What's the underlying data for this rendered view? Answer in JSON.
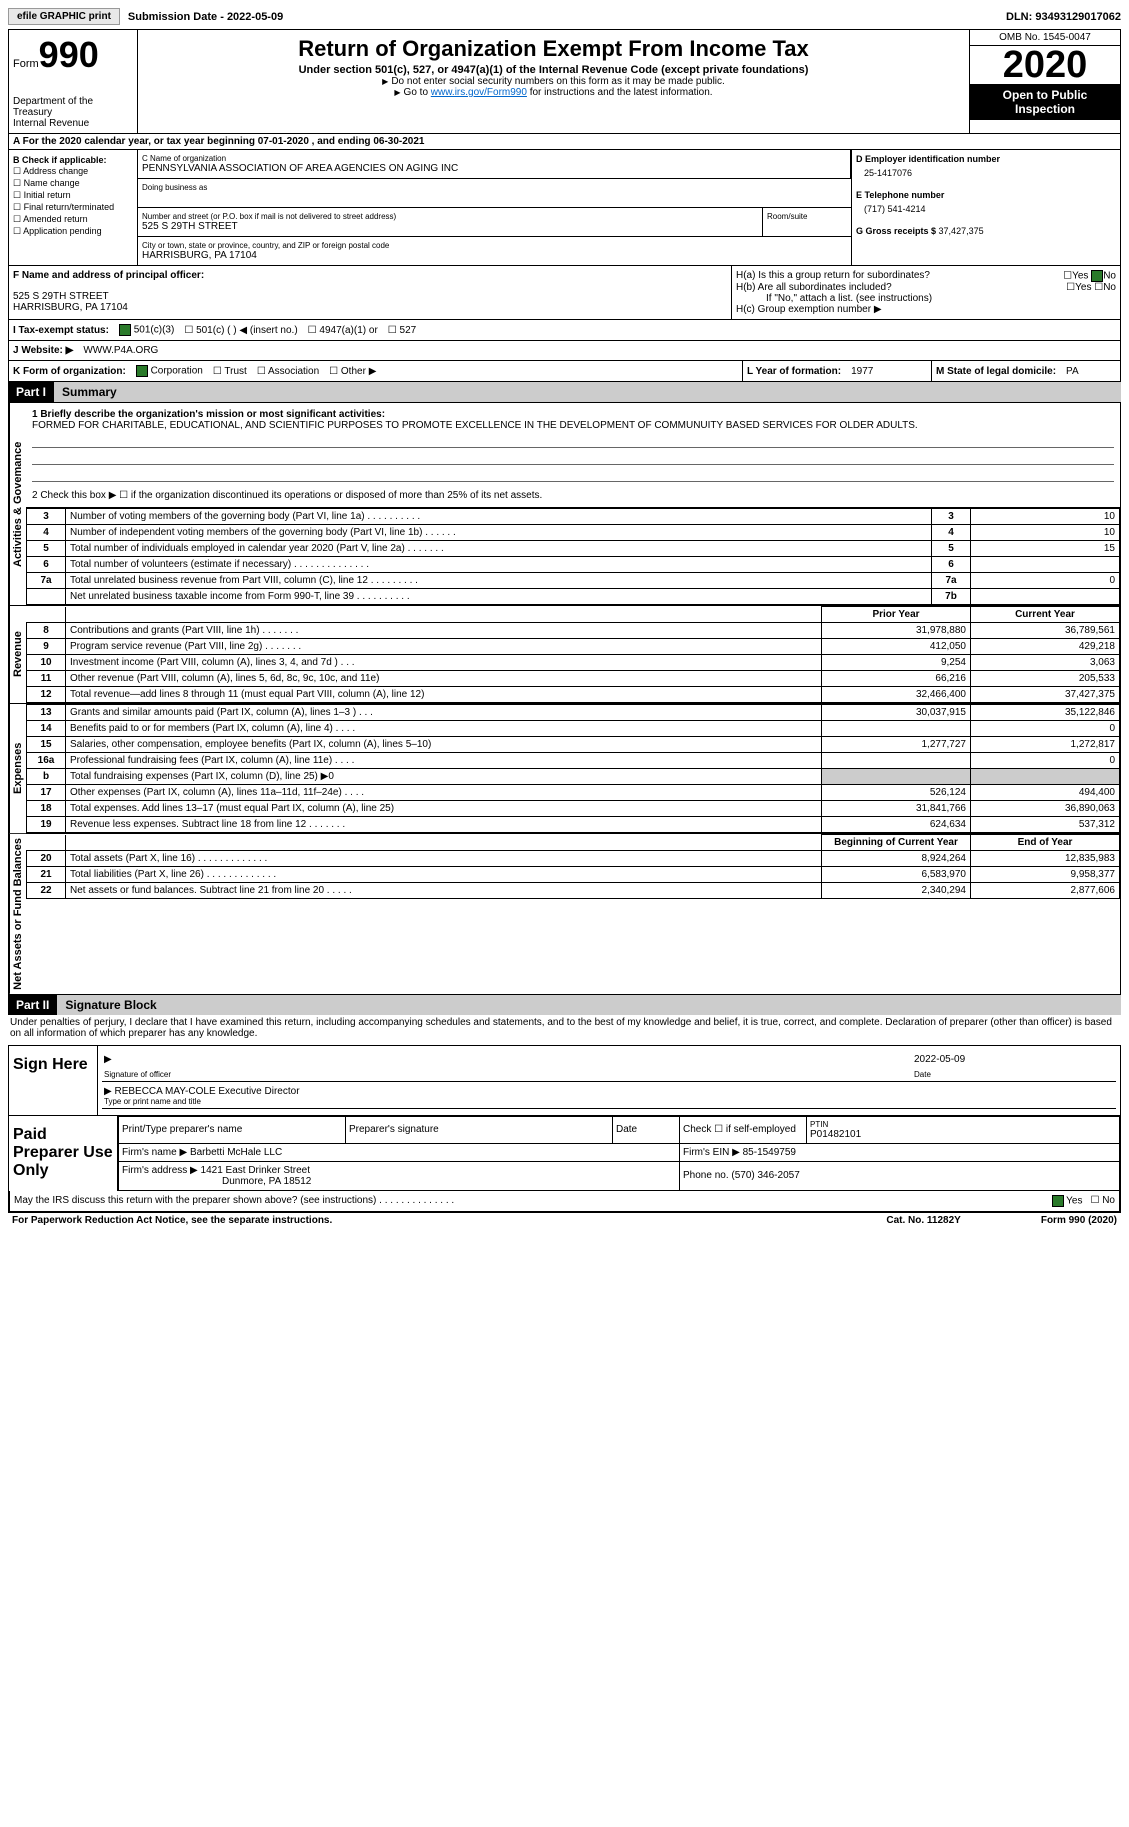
{
  "topbar": {
    "efile": "efile GRAPHIC print",
    "subm_label": "Submission Date - ",
    "subm_date": "2022-05-09",
    "dln_label": "DLN: ",
    "dln": "93493129017062"
  },
  "header": {
    "form_word": "Form",
    "form_num": "990",
    "dept": "Department of the Treasury\nInternal Revenue",
    "title": "Return of Organization Exempt From Income Tax",
    "subtitle": "Under section 501(c), 527, or 4947(a)(1) of the Internal Revenue Code (except private foundations)",
    "instr1": "Do not enter social security numbers on this form as it may be made public.",
    "instr2_pre": "Go to ",
    "instr2_link": "www.irs.gov/Form990",
    "instr2_post": " for instructions and the latest information.",
    "omb": "OMB No. 1545-0047",
    "year": "2020",
    "open": "Open to Public Inspection"
  },
  "row_a": "A For the 2020 calendar year, or tax year beginning 07-01-2020    , and ending 06-30-2021",
  "col_b": {
    "label": "B Check if applicable:",
    "items": [
      "Address change",
      "Name change",
      "Initial return",
      "Final return/terminated",
      "Amended return",
      "Application pending"
    ]
  },
  "col_c": {
    "name_label": "C Name of organization",
    "name": "PENNSYLVANIA ASSOCIATION OF AREA AGENCIES ON AGING INC",
    "dba_label": "Doing business as",
    "addr_label": "Number and street (or P.O. box if mail is not delivered to street address)",
    "room_label": "Room/suite",
    "addr": "525 S 29TH STREET",
    "city_label": "City or town, state or province, country, and ZIP or foreign postal code",
    "city": "HARRISBURG, PA  17104"
  },
  "col_d": {
    "ein_label": "D Employer identification number",
    "ein": "25-1417076",
    "phone_label": "E Telephone number",
    "phone": "(717) 541-4214",
    "gross_label": "G Gross receipts $ ",
    "gross": "37,427,375"
  },
  "col_f": {
    "label": "F  Name and address of principal officer:",
    "addr1": "525 S 29TH STREET",
    "addr2": "HARRISBURG, PA  17104"
  },
  "col_h": {
    "ha": "H(a)  Is this a group return for subordinates?",
    "hb": "H(b)  Are all subordinates included?",
    "hb_note": "If \"No,\" attach a list. (see instructions)",
    "hc": "H(c)  Group exemption number ▶",
    "yes": "Yes",
    "no": "No"
  },
  "row_i": {
    "label": "I  Tax-exempt status:",
    "opts": [
      "501(c)(3)",
      "501(c) (  ) ◀ (insert no.)",
      "4947(a)(1) or",
      "527"
    ]
  },
  "row_j": {
    "label": "J  Website: ▶",
    "val": "WWW.P4A.ORG"
  },
  "row_k": {
    "label": "K Form of organization:",
    "opts": [
      "Corporation",
      "Trust",
      "Association",
      "Other ▶"
    ]
  },
  "row_l": {
    "label": "L Year of formation: ",
    "val": "1977"
  },
  "row_m": {
    "label": "M State of legal domicile: ",
    "val": "PA"
  },
  "part1": {
    "num": "Part I",
    "title": "Summary"
  },
  "mission": {
    "q1": "1  Briefly describe the organization's mission or most significant activities:",
    "text": "FORMED FOR CHARITABLE, EDUCATIONAL, AND SCIENTIFIC PURPOSES TO PROMOTE EXCELLENCE IN THE DEVELOPMENT OF COMMUNUITY BASED SERVICES FOR OLDER ADULTS.",
    "q2": "2   Check this box ▶ ☐  if the organization discontinued its operations or disposed of more than 25% of its net assets."
  },
  "side": {
    "gov": "Activities & Govemance",
    "rev": "Revenue",
    "exp": "Expenses",
    "net": "Net Assets or Fund Balances"
  },
  "gov_rows": [
    {
      "n": "3",
      "t": "Number of voting members of the governing body (Part VI, line 1a)  .    .    .    .    .    .    .    .    .    .",
      "r": "3",
      "v": "10"
    },
    {
      "n": "4",
      "t": "Number of independent voting members of the governing body (Part VI, line 1b)   .    .    .    .    .    .",
      "r": "4",
      "v": "10"
    },
    {
      "n": "5",
      "t": "Total number of individuals employed in calendar year 2020 (Part V, line 2a)   .    .    .    .    .    .    .",
      "r": "5",
      "v": "15"
    },
    {
      "n": "6",
      "t": "Total number of volunteers (estimate if necessary)   .    .    .    .    .    .    .    .    .    .    .    .    .    .",
      "r": "6",
      "v": ""
    },
    {
      "n": "7a",
      "t": "Total unrelated business revenue from Part VIII, column (C), line 12   .    .    .    .    .    .    .    .    .",
      "r": "7a",
      "v": "0"
    },
    {
      "n": "",
      "t": "Net unrelated business taxable income from Form 990-T, line 39   .    .    .    .    .    .    .    .    .    .",
      "r": "7b",
      "v": ""
    }
  ],
  "col_hdrs": {
    "prior": "Prior Year",
    "current": "Current Year",
    "beg": "Beginning of Current Year",
    "end": "End of Year"
  },
  "rev_rows": [
    {
      "n": "8",
      "t": "Contributions and grants (Part VIII, line 1h)   .    .    .    .    .    .    .",
      "p": "31,978,880",
      "c": "36,789,561"
    },
    {
      "n": "9",
      "t": "Program service revenue (Part VIII, line 2g)   .    .    .    .    .    .    .",
      "p": "412,050",
      "c": "429,218"
    },
    {
      "n": "10",
      "t": "Investment income (Part VIII, column (A), lines 3, 4, and 7d )   .    .    .",
      "p": "9,254",
      "c": "3,063"
    },
    {
      "n": "11",
      "t": "Other revenue (Part VIII, column (A), lines 5, 6d, 8c, 9c, 10c, and 11e)",
      "p": "66,216",
      "c": "205,533"
    },
    {
      "n": "12",
      "t": "Total revenue—add lines 8 through 11 (must equal Part VIII, column (A), line 12)",
      "p": "32,466,400",
      "c": "37,427,375"
    }
  ],
  "exp_rows": [
    {
      "n": "13",
      "t": "Grants and similar amounts paid (Part IX, column (A), lines 1–3 )   .    .    .",
      "p": "30,037,915",
      "c": "35,122,846"
    },
    {
      "n": "14",
      "t": "Benefits paid to or for members (Part IX, column (A), line 4)   .    .    .    .",
      "p": "",
      "c": "0"
    },
    {
      "n": "15",
      "t": "Salaries, other compensation, employee benefits (Part IX, column (A), lines 5–10)",
      "p": "1,277,727",
      "c": "1,272,817"
    },
    {
      "n": "16a",
      "t": "Professional fundraising fees (Part IX, column (A), line 11e)   .    .    .    .",
      "p": "",
      "c": "0"
    },
    {
      "n": "b",
      "t": "Total fundraising expenses (Part IX, column (D), line 25) ▶0",
      "p": "shade",
      "c": "shade"
    },
    {
      "n": "17",
      "t": "Other expenses (Part IX, column (A), lines 11a–11d, 11f–24e)   .    .    .    .",
      "p": "526,124",
      "c": "494,400"
    },
    {
      "n": "18",
      "t": "Total expenses. Add lines 13–17 (must equal Part IX, column (A), line 25)",
      "p": "31,841,766",
      "c": "36,890,063"
    },
    {
      "n": "19",
      "t": "Revenue less expenses. Subtract line 18 from line 12 .    .    .    .    .    .    .",
      "p": "624,634",
      "c": "537,312"
    }
  ],
  "net_rows": [
    {
      "n": "20",
      "t": "Total assets (Part X, line 16)  .    .    .    .    .    .    .    .    .    .    .    .    .",
      "p": "8,924,264",
      "c": "12,835,983"
    },
    {
      "n": "21",
      "t": "Total liabilities (Part X, line 26) .    .    .    .    .    .    .    .    .    .    .    .    .",
      "p": "6,583,970",
      "c": "9,958,377"
    },
    {
      "n": "22",
      "t": "Net assets or fund balances. Subtract line 21 from line 20 .    .    .    .    .",
      "p": "2,340,294",
      "c": "2,877,606"
    }
  ],
  "part2": {
    "num": "Part II",
    "title": "Signature Block"
  },
  "sig": {
    "decl": "Under penalties of perjury, I declare that I have examined this return, including accompanying schedules and statements, and to the best of my knowledge and belief, it is true, correct, and complete. Declaration of preparer (other than officer) is based on all information of which preparer has any knowledge.",
    "sign_here": "Sign Here",
    "sig_officer": "Signature of officer",
    "date_lbl": "Date",
    "date_val": "2022-05-09",
    "name": "REBECCA MAY-COLE  Executive Director",
    "name_lbl": "Type or print name and title",
    "paid": "Paid Preparer Use Only",
    "prep_name_lbl": "Print/Type preparer's name",
    "prep_sig_lbl": "Preparer's signature",
    "check_lbl": "Check ☐ if self-employed",
    "ptin_lbl": "PTIN",
    "ptin": "P01482101",
    "firm_name_lbl": "Firm's name    ▶ ",
    "firm_name": "Barbetti McHale LLC",
    "firm_ein_lbl": "Firm's EIN ▶ ",
    "firm_ein": "85-1549759",
    "firm_addr_lbl": "Firm's address ▶ ",
    "firm_addr": "1421 East Drinker Street",
    "firm_city": "Dunmore, PA  18512",
    "phone_lbl": "Phone no. ",
    "phone": "(570) 346-2057",
    "discuss": "May the IRS discuss this return with the preparer shown above? (see instructions)   .    .    .    .    .    .    .    .    .    .    .    .    .    ."
  },
  "footer": {
    "paperwork": "For Paperwork Reduction Act Notice, see the separate instructions.",
    "cat": "Cat. No. 11282Y",
    "form": "Form 990 (2020)"
  }
}
